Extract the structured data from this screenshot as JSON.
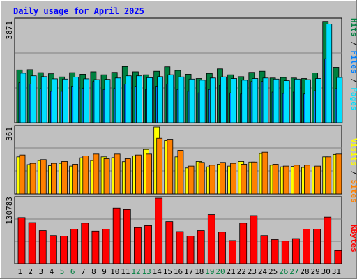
{
  "title": "Daily usage for April 2025",
  "colors": {
    "hits": "#008040",
    "files": "#0080ff",
    "pages": "#00e0ff",
    "visits": "#ffff00",
    "sites": "#ff8000",
    "kbytes": "#ff0000",
    "title": "#0000ff",
    "weekend": "#008040",
    "plot_bg": "#c0c0c0"
  },
  "chart_data": [
    {
      "type": "bar",
      "name": "hits-files-pages",
      "max_label": "3871",
      "ylim": [
        0,
        3871
      ],
      "legend": {
        "pages": "Pages",
        "files": "Files",
        "hits": "Hits",
        "sep": " / "
      },
      "categories": [
        "1",
        "2",
        "3",
        "4",
        "5",
        "6",
        "7",
        "8",
        "9",
        "10",
        "11",
        "12",
        "13",
        "14",
        "15",
        "16",
        "17",
        "18",
        "19",
        "20",
        "21",
        "22",
        "23",
        "24",
        "25",
        "26",
        "27",
        "28",
        "29",
        "30",
        "31"
      ],
      "series": [
        {
          "name": "Hits",
          "values": [
            1980,
            1990,
            1880,
            1840,
            1720,
            1880,
            1820,
            1910,
            1800,
            1890,
            2110,
            1910,
            1800,
            1930,
            2100,
            1960,
            1820,
            1660,
            1850,
            2020,
            1800,
            1730,
            1890,
            1930,
            1680,
            1700,
            1680,
            1660,
            1870,
            3800,
            2080
          ]
        },
        {
          "name": "Files",
          "values": [
            1500,
            1450,
            1280,
            1180,
            1180,
            1350,
            1300,
            1550,
            1250,
            1300,
            1450,
            1350,
            1250,
            1350,
            1450,
            1250,
            1180,
            1120,
            1250,
            1400,
            1120,
            1080,
            1550,
            1550,
            1150,
            1100,
            1150,
            1080,
            1200,
            2400,
            1280
          ]
        },
        {
          "name": "Pages",
          "values": [
            1860,
            1760,
            1730,
            1650,
            1640,
            1710,
            1650,
            1620,
            1630,
            1680,
            1760,
            1760,
            1690,
            1730,
            1800,
            1720,
            1640,
            1600,
            1680,
            1720,
            1660,
            1600,
            1660,
            1680,
            1640,
            1580,
            1640,
            1620,
            1660,
            3700,
            1700
          ]
        }
      ]
    },
    {
      "type": "bar",
      "name": "visits-sites",
      "max_label": "361",
      "ylim": [
        0,
        361
      ],
      "legend": {
        "sites": "Sites",
        "visits": "Visits",
        "sep": " / "
      },
      "categories": [
        "1",
        "2",
        "3",
        "4",
        "5",
        "6",
        "7",
        "8",
        "9",
        "10",
        "11",
        "12",
        "13",
        "14",
        "15",
        "16",
        "17",
        "18",
        "19",
        "20",
        "21",
        "22",
        "23",
        "24",
        "25",
        "26",
        "27",
        "28",
        "29",
        "30",
        "31"
      ],
      "series": [
        {
          "name": "Visits",
          "values": [
            200,
            158,
            180,
            152,
            165,
            150,
            195,
            180,
            200,
            196,
            174,
            205,
            240,
            361,
            288,
            200,
            140,
            175,
            146,
            160,
            150,
            175,
            172,
            218,
            155,
            146,
            148,
            143,
            145,
            200,
            213
          ]
        },
        {
          "name": "Sites",
          "values": [
            210,
            165,
            185,
            165,
            175,
            160,
            205,
            215,
            190,
            215,
            190,
            210,
            215,
            300,
            295,
            235,
            150,
            170,
            155,
            170,
            165,
            160,
            172,
            225,
            160,
            150,
            155,
            155,
            150,
            200,
            215
          ]
        }
      ]
    },
    {
      "type": "bar",
      "name": "kbytes",
      "max_label": "130783",
      "ylim": [
        0,
        130783
      ],
      "legend": {
        "kbytes": "KBytes"
      },
      "categories": [
        "1",
        "2",
        "3",
        "4",
        "5",
        "6",
        "7",
        "8",
        "9",
        "10",
        "11",
        "12",
        "13",
        "14",
        "15",
        "16",
        "17",
        "18",
        "19",
        "20",
        "21",
        "22",
        "23",
        "24",
        "25",
        "26",
        "27",
        "28",
        "29",
        "30",
        "31"
      ],
      "series": [
        {
          "name": "KBytes",
          "values": [
            92000,
            82000,
            66000,
            56000,
            55000,
            69000,
            81000,
            65000,
            69000,
            111000,
            108000,
            72000,
            76000,
            130783,
            84000,
            64000,
            55000,
            66000,
            98000,
            63000,
            46000,
            81000,
            96000,
            56000,
            48000,
            45000,
            50000,
            69000,
            69000,
            93000,
            26000
          ]
        }
      ]
    }
  ],
  "weekend_days": [
    "5",
    "6",
    "12",
    "13",
    "19",
    "20",
    "26",
    "27"
  ]
}
